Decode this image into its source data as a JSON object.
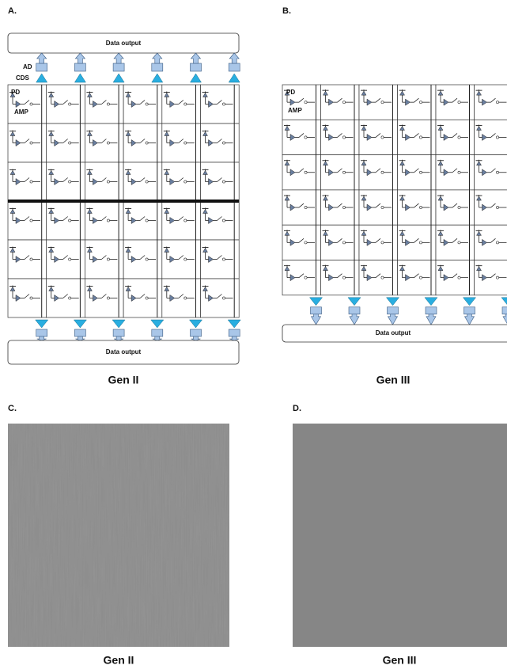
{
  "panels": [
    {
      "label": "A.",
      "caption": "Gen II",
      "top_output": "Data output",
      "bottom_output": "Data output",
      "ad": "AD",
      "cds": "CDS",
      "pd": "PD",
      "amp": "AMP"
    },
    {
      "label": "B.",
      "caption": "Gen III",
      "bottom_output": "Data output",
      "pd": "PD",
      "amp": "AMP"
    },
    {
      "label": "C.",
      "caption": "Gen II"
    },
    {
      "label": "D.",
      "caption": "Gen III"
    }
  ]
}
